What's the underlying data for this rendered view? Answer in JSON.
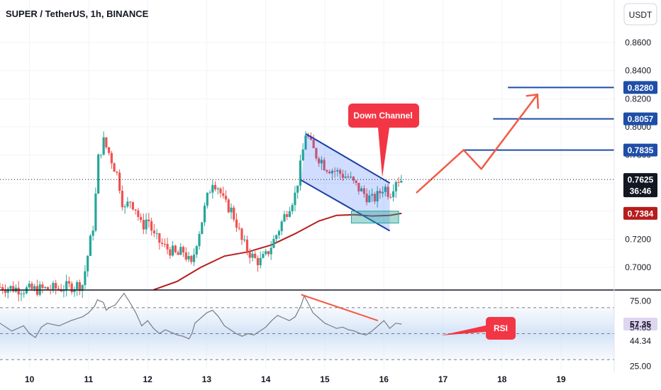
{
  "header": {
    "title": "SUPER / TetherUS, 1h, BINANCE"
  },
  "currency_label": "USDT",
  "colors": {
    "up": "#26a69a",
    "down": "#ef5350",
    "ma": "#b71c1c",
    "channel": "#1a3fa8",
    "rsi_line": "#787b86",
    "target": "#1e4ea8",
    "callout": "#f23645",
    "arrow": "#f25b45"
  },
  "chart_data": [
    {
      "type": "candlestick",
      "title": "SUPER / TetherUS, 1h, BINANCE",
      "y_ticks": [
        "0.8600",
        "0.8400",
        "0.8200",
        "0.8000",
        "0.7800",
        "0.7600",
        "0.7400",
        "0.7200",
        "0.7000"
      ],
      "x_ticks": [
        "10",
        "11",
        "12",
        "13",
        "14",
        "15",
        "16",
        "17",
        "18",
        "19"
      ],
      "ylim": [
        0.684,
        0.885
      ],
      "xlim": [
        9.5,
        19.9
      ],
      "close_path": [
        [
          9.5,
          0.686
        ],
        [
          10.0,
          0.684
        ],
        [
          10.5,
          0.685
        ],
        [
          10.9,
          0.688
        ],
        [
          11.0,
          0.712
        ],
        [
          11.1,
          0.735
        ],
        [
          11.15,
          0.775
        ],
        [
          11.25,
          0.79
        ],
        [
          11.35,
          0.781
        ],
        [
          11.5,
          0.764
        ],
        [
          11.6,
          0.74
        ],
        [
          11.7,
          0.748
        ],
        [
          11.8,
          0.742
        ],
        [
          11.9,
          0.728
        ],
        [
          12.0,
          0.736
        ],
        [
          12.1,
          0.722
        ],
        [
          12.2,
          0.718
        ],
        [
          12.3,
          0.714
        ],
        [
          12.4,
          0.712
        ],
        [
          12.5,
          0.708
        ],
        [
          12.6,
          0.712
        ],
        [
          12.7,
          0.704
        ],
        [
          12.75,
          0.7
        ],
        [
          12.8,
          0.714
        ],
        [
          12.9,
          0.73
        ],
        [
          13.0,
          0.748
        ],
        [
          13.1,
          0.762
        ],
        [
          13.2,
          0.757
        ],
        [
          13.3,
          0.745
        ],
        [
          13.4,
          0.742
        ],
        [
          13.5,
          0.732
        ],
        [
          13.6,
          0.718
        ],
        [
          13.7,
          0.712
        ],
        [
          13.8,
          0.706
        ],
        [
          13.9,
          0.704
        ],
        [
          14.0,
          0.708
        ],
        [
          14.1,
          0.716
        ],
        [
          14.2,
          0.725
        ],
        [
          14.3,
          0.735
        ],
        [
          14.4,
          0.744
        ],
        [
          14.5,
          0.752
        ],
        [
          14.6,
          0.775
        ],
        [
          14.68,
          0.797
        ],
        [
          14.75,
          0.788
        ],
        [
          14.85,
          0.78
        ],
        [
          14.95,
          0.776
        ],
        [
          15.0,
          0.772
        ],
        [
          15.1,
          0.77
        ],
        [
          15.2,
          0.768
        ],
        [
          15.3,
          0.766
        ],
        [
          15.4,
          0.764
        ],
        [
          15.5,
          0.759
        ],
        [
          15.6,
          0.755
        ],
        [
          15.7,
          0.751
        ],
        [
          15.8,
          0.748
        ],
        [
          15.9,
          0.751
        ],
        [
          16.0,
          0.758
        ],
        [
          16.1,
          0.752
        ],
        [
          16.2,
          0.763
        ],
        [
          16.3,
          0.7625
        ]
      ],
      "annotations": [
        {
          "text": "Down Channel",
          "kind": "callout"
        },
        {
          "kind": "descending-channel",
          "upper": [
            [
              14.68,
              0.795
            ],
            [
              16.1,
              0.76
            ]
          ],
          "lower": [
            [
              14.6,
              0.762
            ],
            [
              16.1,
              0.726
            ]
          ]
        },
        {
          "kind": "support-box",
          "x": [
            15.45,
            16.25
          ],
          "y": [
            0.7315,
            0.74
          ]
        },
        {
          "kind": "target-line",
          "value": 0.828,
          "from": 18.1
        },
        {
          "kind": "target-line",
          "value": 0.8057,
          "from": 17.85
        },
        {
          "kind": "target-line",
          "value": 0.7835,
          "from": 17.35
        },
        {
          "kind": "projection-arrow",
          "points": [
            [
              16.55,
              0.753
            ],
            [
              17.35,
              0.7835
            ],
            [
              17.65,
              0.77
            ],
            [
              18.6,
              0.823
            ]
          ]
        }
      ],
      "price_labels": [
        {
          "text": "0.8280",
          "value": 0.828,
          "style": "target"
        },
        {
          "text": "0.8057",
          "value": 0.8057,
          "style": "target"
        },
        {
          "text": "0.7835",
          "value": 0.7835,
          "style": "target"
        },
        {
          "text": "0.7625",
          "value": 0.7625,
          "style": "last"
        },
        {
          "text": "36:46",
          "value": 0.7625,
          "style": "countdown"
        },
        {
          "text": "0.7384",
          "value": 0.7384,
          "style": "ma"
        }
      ],
      "last_price": 0.7625,
      "ma_value": 0.7384
    },
    {
      "type": "line",
      "indicator": "RSI",
      "ylim": [
        23,
        83
      ],
      "levels": [
        70,
        50,
        30
      ],
      "y_ticks": [
        "75.00",
        "54.63",
        "44.34",
        "25.00"
      ],
      "series_values": [
        [
          9.5,
          58
        ],
        [
          9.7,
          52
        ],
        [
          9.9,
          56
        ],
        [
          10.0,
          50
        ],
        [
          10.1,
          47
        ],
        [
          10.2,
          55
        ],
        [
          10.3,
          58
        ],
        [
          10.5,
          56
        ],
        [
          10.7,
          60
        ],
        [
          10.9,
          63
        ],
        [
          11.0,
          66
        ],
        [
          11.1,
          71
        ],
        [
          11.15,
          76
        ],
        [
          11.25,
          74
        ],
        [
          11.3,
          68
        ],
        [
          11.35,
          70
        ],
        [
          11.45,
          72
        ],
        [
          11.55,
          78
        ],
        [
          11.6,
          81
        ],
        [
          11.7,
          74
        ],
        [
          11.8,
          66
        ],
        [
          11.9,
          56
        ],
        [
          12.0,
          60
        ],
        [
          12.1,
          54
        ],
        [
          12.2,
          50
        ],
        [
          12.3,
          53
        ],
        [
          12.4,
          51
        ],
        [
          12.5,
          49
        ],
        [
          12.6,
          48
        ],
        [
          12.7,
          46
        ],
        [
          12.75,
          50
        ],
        [
          12.8,
          58
        ],
        [
          12.9,
          62
        ],
        [
          13.0,
          66
        ],
        [
          13.1,
          68
        ],
        [
          13.2,
          63
        ],
        [
          13.3,
          56
        ],
        [
          13.4,
          53
        ],
        [
          13.5,
          50
        ],
        [
          13.6,
          48
        ],
        [
          13.7,
          50
        ],
        [
          13.8,
          49
        ],
        [
          13.9,
          52
        ],
        [
          14.0,
          55
        ],
        [
          14.1,
          60
        ],
        [
          14.2,
          64
        ],
        [
          14.3,
          62
        ],
        [
          14.4,
          60
        ],
        [
          14.5,
          63
        ],
        [
          14.6,
          72
        ],
        [
          14.65,
          79
        ],
        [
          14.7,
          75
        ],
        [
          14.8,
          66
        ],
        [
          14.9,
          62
        ],
        [
          15.0,
          58
        ],
        [
          15.1,
          56
        ],
        [
          15.2,
          54
        ],
        [
          15.3,
          55
        ],
        [
          15.4,
          53
        ],
        [
          15.5,
          52
        ],
        [
          15.6,
          50
        ],
        [
          15.7,
          49
        ],
        [
          15.8,
          52
        ],
        [
          15.9,
          56
        ],
        [
          16.0,
          60
        ],
        [
          16.1,
          54
        ],
        [
          16.2,
          58
        ],
        [
          16.3,
          57.35
        ]
      ],
      "price_labels": [
        {
          "text": "57.35",
          "value": 57.35,
          "style": "current"
        }
      ],
      "annotations": [
        {
          "text": "RSI",
          "kind": "callout"
        },
        {
          "kind": "divergence-line",
          "points": [
            [
              14.6,
              80
            ],
            [
              15.9,
              60
            ]
          ]
        }
      ]
    }
  ]
}
